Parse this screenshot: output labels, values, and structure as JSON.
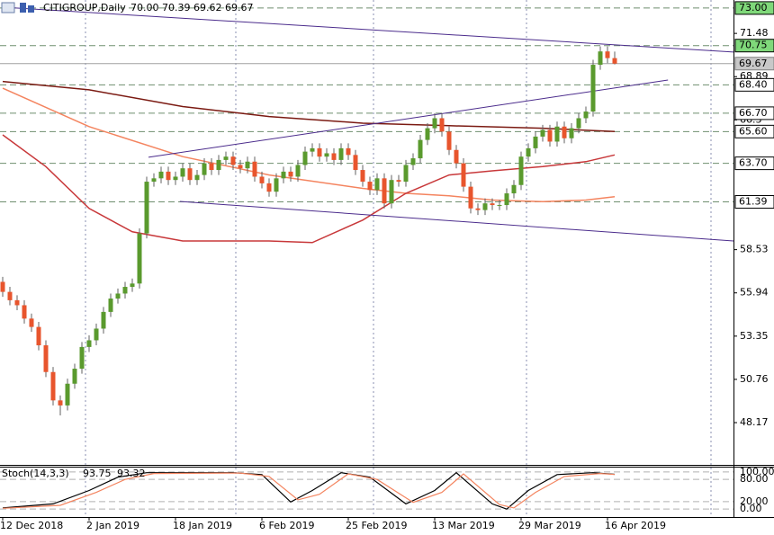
{
  "chart_data": [
    {
      "type": "candlestick",
      "title": "CITIGROUP,Daily",
      "subtitle": "70.00 70.39 69.62 69.67",
      "categories": [
        "12 Dec 2018",
        null,
        null,
        null,
        null,
        null,
        null,
        null,
        null,
        null,
        null,
        null,
        "2 Jan 2019",
        null,
        null,
        null,
        null,
        null,
        null,
        null,
        null,
        null,
        null,
        null,
        "18 Jan 2019",
        null,
        null,
        null,
        null,
        null,
        null,
        null,
        null,
        null,
        null,
        null,
        "6 Feb 2019",
        null,
        null,
        null,
        null,
        null,
        null,
        null,
        null,
        null,
        null,
        null,
        "25 Feb 2019",
        null,
        null,
        null,
        null,
        null,
        null,
        null,
        null,
        null,
        null,
        null,
        "13 Mar 2019",
        null,
        null,
        null,
        null,
        null,
        null,
        null,
        null,
        null,
        null,
        null,
        "29 Mar 2019",
        null,
        null,
        null,
        null,
        null,
        null,
        null,
        null,
        null,
        null,
        null,
        "16 Apr 2019",
        null
      ],
      "xlim": [
        -0.375,
        101.5
      ],
      "ylim": [
        45.64,
        73.48
      ],
      "yticks": [
        71.48,
        68.89,
        66.3,
        58.53,
        55.94,
        53.35,
        50.76,
        48.17
      ],
      "up_color": "#5a9a2e",
      "down_color": "#e8552d",
      "open": [
        56.6,
        56.0,
        55.5,
        55.2,
        54.4,
        53.9,
        52.8,
        51.2,
        49.5,
        49.2,
        50.5,
        51.4,
        52.7,
        53.1,
        53.8,
        54.8,
        55.6,
        55.9,
        56.3,
        56.5,
        59.5,
        62.6,
        62.8,
        63.2,
        62.7,
        62.9,
        63.4,
        62.7,
        63.0,
        63.7,
        63.3,
        63.9,
        64.1,
        63.6,
        63.4,
        63.8,
        62.9,
        62.5,
        62.0,
        62.8,
        63.2,
        62.9,
        63.6,
        64.4,
        64.6,
        64.1,
        64.3,
        63.9,
        64.6,
        64.2,
        63.3,
        62.6,
        62.1,
        62.8,
        61.3,
        62.7,
        62.6,
        63.6,
        64.0,
        65.1,
        65.8,
        66.4,
        65.6,
        64.5,
        63.7,
        62.3,
        61.0,
        60.9,
        61.3,
        61.2,
        61.2,
        61.9,
        62.4,
        64.1,
        64.6,
        65.3,
        65.7,
        65.0,
        65.9,
        65.2,
        65.8,
        66.4,
        66.8,
        69.6,
        70.4,
        70.0
      ],
      "high": [
        56.9,
        56.3,
        55.8,
        55.5,
        54.7,
        54.2,
        53.1,
        51.5,
        49.8,
        50.8,
        51.7,
        53.0,
        53.4,
        54.1,
        55.1,
        55.9,
        56.2,
        56.6,
        56.8,
        59.8,
        62.9,
        63.1,
        63.5,
        63.5,
        63.2,
        63.7,
        63.7,
        63.3,
        64.0,
        64.0,
        64.2,
        64.4,
        64.4,
        63.9,
        64.1,
        64.1,
        63.2,
        62.8,
        63.1,
        63.5,
        63.5,
        63.9,
        64.7,
        64.9,
        64.9,
        64.6,
        64.6,
        64.9,
        64.9,
        64.5,
        63.6,
        62.9,
        63.1,
        63.1,
        63.0,
        63.0,
        63.9,
        64.3,
        65.4,
        66.1,
        66.7,
        66.7,
        65.9,
        64.8,
        64.0,
        62.6,
        61.3,
        61.6,
        61.6,
        61.5,
        62.2,
        62.7,
        64.4,
        64.9,
        65.6,
        66.0,
        66.0,
        66.2,
        66.2,
        66.1,
        66.7,
        67.1,
        69.9,
        70.7,
        70.7,
        70.39
      ],
      "low": [
        55.7,
        55.2,
        54.9,
        54.1,
        53.6,
        52.5,
        50.9,
        49.2,
        48.6,
        48.9,
        50.2,
        51.1,
        52.4,
        52.8,
        53.5,
        54.5,
        55.3,
        55.6,
        56.0,
        56.2,
        59.2,
        62.3,
        62.5,
        62.4,
        62.4,
        62.6,
        62.4,
        62.4,
        62.7,
        63.0,
        63.0,
        63.6,
        63.3,
        63.1,
        63.1,
        62.6,
        62.2,
        61.7,
        61.7,
        62.5,
        62.6,
        62.6,
        63.3,
        64.1,
        63.8,
        63.8,
        63.6,
        63.6,
        63.9,
        63.0,
        62.3,
        61.8,
        61.8,
        61.0,
        61.0,
        62.3,
        62.3,
        63.3,
        63.7,
        64.8,
        65.5,
        65.3,
        64.2,
        63.4,
        62.0,
        60.7,
        60.6,
        60.6,
        60.9,
        60.9,
        60.9,
        61.6,
        62.1,
        63.8,
        64.3,
        65.0,
        64.7,
        64.7,
        64.9,
        64.9,
        65.5,
        66.1,
        66.5,
        69.3,
        69.7,
        69.62
      ],
      "close": [
        56.0,
        55.5,
        55.2,
        54.4,
        53.9,
        52.8,
        51.2,
        49.5,
        49.2,
        50.5,
        51.4,
        52.7,
        53.1,
        53.8,
        54.8,
        55.6,
        55.9,
        56.3,
        56.5,
        59.5,
        62.6,
        62.8,
        63.2,
        62.7,
        62.9,
        63.4,
        62.7,
        63.0,
        63.7,
        63.3,
        63.9,
        64.1,
        63.6,
        63.4,
        63.8,
        62.9,
        62.5,
        62.0,
        62.8,
        63.2,
        62.9,
        63.6,
        64.4,
        64.6,
        64.1,
        64.3,
        63.9,
        64.6,
        64.2,
        63.3,
        62.6,
        62.1,
        62.8,
        61.3,
        62.7,
        62.6,
        63.6,
        64.0,
        65.1,
        65.8,
        66.4,
        65.6,
        64.5,
        63.7,
        62.3,
        61.0,
        60.9,
        61.3,
        61.2,
        61.2,
        61.9,
        62.4,
        64.1,
        64.6,
        65.3,
        65.7,
        65.0,
        65.9,
        65.2,
        65.8,
        66.4,
        66.8,
        69.6,
        70.4,
        70.0,
        69.67
      ],
      "lines": [
        {
          "color": "#7b1a12",
          "x": [
            0,
            12,
            25,
            37,
            50,
            62,
            75,
            85
          ],
          "values": [
            68.6,
            68.1,
            67.1,
            66.5,
            66.1,
            65.95,
            65.8,
            65.6
          ]
        },
        {
          "color": "#f4845f",
          "x": [
            0,
            12,
            25,
            37,
            50,
            56,
            62,
            68,
            75,
            81,
            85
          ],
          "values": [
            68.2,
            65.9,
            64.1,
            63.0,
            62.2,
            61.9,
            61.75,
            61.5,
            61.4,
            61.5,
            61.7
          ]
        },
        {
          "color": "#c8383a",
          "x": [
            0,
            6,
            12,
            18,
            25,
            37,
            43,
            50,
            56,
            62,
            68,
            75,
            81,
            85
          ],
          "values": [
            65.4,
            63.5,
            61.0,
            59.6,
            59.05,
            59.05,
            58.95,
            60.3,
            61.9,
            63.0,
            63.25,
            63.5,
            63.8,
            64.2
          ]
        }
      ],
      "trendlines": [
        {
          "color": "#4b2c8c",
          "x": [
            0,
            101.5
          ],
          "values": [
            73.05,
            70.36
          ]
        },
        {
          "color": "#4b2c8c",
          "x": [
            20.25,
            92.4
          ],
          "values": [
            64.06,
            68.69
          ]
        },
        {
          "color": "#4b2c8c",
          "x": [
            24.6,
            101.5
          ],
          "values": [
            61.42,
            59.05
          ]
        }
      ],
      "levels": [
        {
          "value": 73,
          "label": "73.00"
        },
        70.75,
        {
          "value": 68.4,
          "label": "68.40"
        },
        {
          "value": 66.7,
          "label": "66.70"
        },
        {
          "value": 65.6,
          "label": "65.60"
        },
        {
          "value": 63.7,
          "label": "63.70"
        },
        61.39
      ],
      "level_fills": [
        "#7fd87a",
        "#7fd87a",
        "#ffffff",
        "#ffffff",
        "#ffffff",
        "#ffffff",
        "#ffffff"
      ],
      "level_color": "#6f8f6f",
      "price_line": 69.67,
      "price_line_color": "#a0a0a0"
    },
    {
      "type": "stochastic",
      "title": "Stoch(14,3,3)",
      "ylim": [
        -21.4,
        111.9
      ],
      "yticks": [
        {
          "value": 100,
          "label": "100.00"
        },
        {
          "value": 80,
          "label": "80.00"
        },
        {
          "value": 20,
          "label": "20.00"
        },
        {
          "value": 0,
          "label": "0.00"
        }
      ],
      "series": [
        {
          "color": "#000000",
          "x": [
            0,
            7,
            12,
            16,
            20,
            32,
            36,
            40,
            43,
            47,
            51,
            56,
            60,
            63,
            68,
            70,
            73,
            77,
            82,
            85
          ],
          "values": [
            3,
            14,
            50,
            86,
            98,
            98,
            93,
            19,
            50,
            98,
            86,
            14,
            50,
            98,
            14,
            0,
            50,
            93,
            98,
            93.75
          ]
        },
        {
          "color": "#f4845f",
          "x": [
            0,
            8,
            13,
            17,
            21,
            33,
            37,
            41,
            44,
            48,
            52,
            57,
            61,
            64,
            69,
            71,
            74,
            78,
            83,
            85
          ],
          "values": [
            2,
            10,
            45,
            80,
            96,
            97,
            88,
            25,
            40,
            95,
            80,
            18,
            45,
            95,
            12,
            3,
            45,
            88,
            96,
            93.32
          ]
        }
      ]
    }
  ]
}
